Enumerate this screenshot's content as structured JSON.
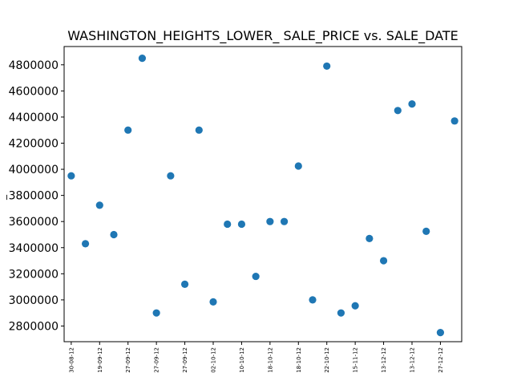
{
  "chart_data": {
    "type": "scatter",
    "title": "WASHINGTON_HEIGHTS_LOWER_ SALE_PRICE vs. SALE_DATE",
    "xlabel": "",
    "ylabel": "_",
    "x_tick_labels": [
      "30-08-12",
      "19-09-12",
      "27-09-12",
      "27-09-12",
      "27-09-12",
      "02-10-12",
      "10-10-12",
      "18-10-12",
      "18-10-12",
      "22-10-12",
      "15-11-12",
      "13-12-12",
      "13-12-12",
      "27-12-12"
    ],
    "y_ticks": [
      2800000,
      3000000,
      3200000,
      3400000,
      3600000,
      3800000,
      4000000,
      4200000,
      4400000,
      4600000,
      4800000
    ],
    "ylim": [
      2680000,
      4940000
    ],
    "x_index_range": [
      -0.5,
      27.5
    ],
    "grid": false,
    "legend": "none",
    "point_color": "#1f77b4",
    "series": [
      {
        "x": [
          0,
          1,
          2,
          3,
          4,
          5,
          6,
          7,
          8,
          9,
          10,
          11,
          12,
          13,
          14,
          15,
          16,
          17,
          18,
          19,
          20,
          21,
          22,
          23,
          24,
          25,
          26,
          27
        ],
        "values": [
          3950000,
          3430000,
          3725000,
          3500000,
          4300000,
          4850000,
          2900000,
          3950000,
          3120000,
          4300000,
          2985000,
          3580000,
          3580000,
          3180000,
          3600000,
          3600000,
          4025000,
          3000000,
          4790000,
          2900000,
          2955000,
          3470000,
          3300000,
          4450000,
          4500000,
          3525000,
          2750000,
          4370000
        ]
      }
    ]
  }
}
